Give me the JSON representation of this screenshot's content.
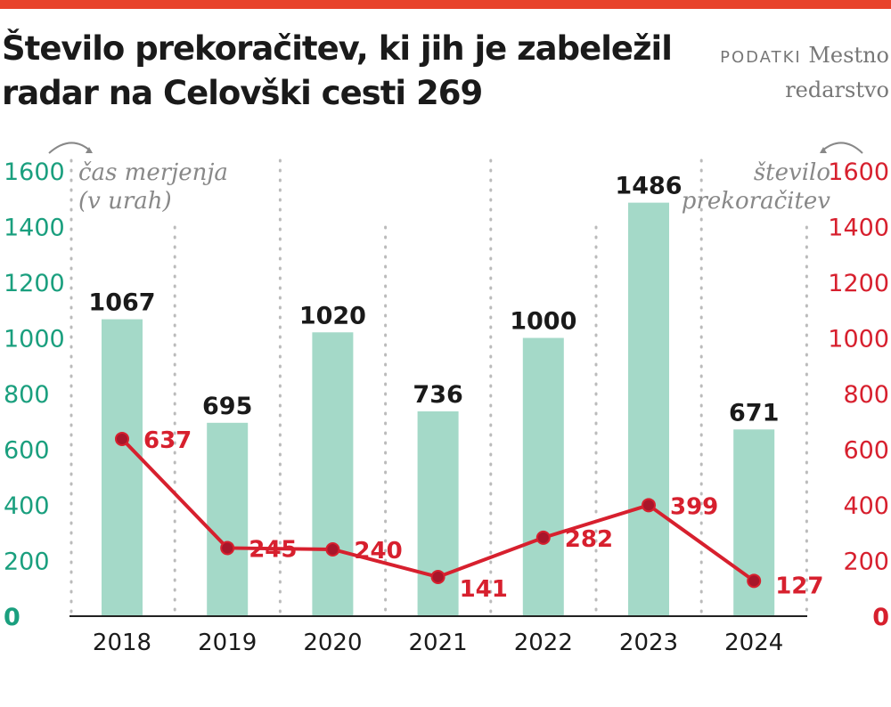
{
  "title": "Število prekoračitev, ki jih je zabeležil radar na Celovški cesti 269",
  "source": {
    "label": "PODATKI",
    "name_line1": "Mestno",
    "name_line2": "redarstvo"
  },
  "colors": {
    "accent": "#e8432b",
    "bars": "#a4d9c8",
    "line": "#d7202e",
    "left_axis": "#1a9f7e",
    "right_axis": "#d7202e"
  },
  "chart_data": {
    "type": "bar+line",
    "categories": [
      "2018",
      "2019",
      "2020",
      "2021",
      "2022",
      "2023",
      "2024"
    ],
    "series": [
      {
        "name": "čas merjenja (v urah)",
        "type": "bar",
        "axis": "left",
        "values": [
          1067,
          695,
          1020,
          736,
          1000,
          1486,
          671
        ]
      },
      {
        "name": "število prekoračitev",
        "type": "line",
        "axis": "right",
        "values": [
          637,
          245,
          240,
          141,
          282,
          399,
          127
        ]
      }
    ],
    "left_axis": {
      "label_line1": "čas merjenja",
      "label_line2": "(v urah)",
      "ylim": [
        0,
        1600
      ],
      "ticks": [
        0,
        200,
        400,
        600,
        800,
        1000,
        1200,
        1400,
        1600
      ]
    },
    "right_axis": {
      "label_line1": "število",
      "label_line2": "prekoračitev",
      "ylim": [
        0,
        1600
      ],
      "ticks": [
        0,
        200,
        400,
        600,
        800,
        1000,
        1200,
        1400,
        1600
      ]
    },
    "grid": "vertical dotted"
  }
}
